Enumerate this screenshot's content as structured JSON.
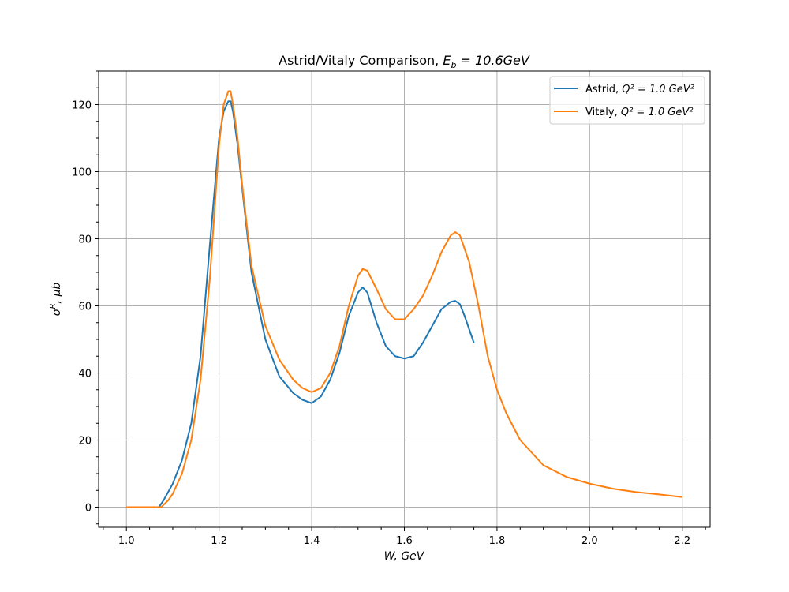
{
  "chart_data": {
    "type": "line",
    "title": {
      "text": "Astrid/Vitaly Comparison, ",
      "math_base": "E",
      "math_sub": "b",
      "math_rest": " = 10.6GeV"
    },
    "xlabel": "W, GeV",
    "ylabel": {
      "base": "σ",
      "sup": "R",
      "rest": ", μb"
    },
    "xlim": [
      0.94,
      2.26
    ],
    "ylim": [
      -6,
      130
    ],
    "xticks": [
      1.0,
      1.2,
      1.4,
      1.6,
      1.8,
      2.0,
      2.2
    ],
    "xtick_labels": [
      "1.0",
      "1.2",
      "1.4",
      "1.6",
      "1.8",
      "2.0",
      "2.2"
    ],
    "yticks": [
      0,
      20,
      40,
      60,
      80,
      100,
      120
    ],
    "ytick_labels": [
      "0",
      "20",
      "40",
      "60",
      "80",
      "100",
      "120"
    ],
    "grid": true,
    "legend_position": "top-right",
    "series": [
      {
        "name": "Astrid, ",
        "legend_math": "Q² = 1.0 GeV²",
        "color": "#1f77b4",
        "x": [
          1.07,
          1.08,
          1.1,
          1.12,
          1.14,
          1.16,
          1.18,
          1.2,
          1.21,
          1.22,
          1.225,
          1.23,
          1.24,
          1.25,
          1.27,
          1.3,
          1.33,
          1.36,
          1.38,
          1.4,
          1.42,
          1.44,
          1.46,
          1.48,
          1.5,
          1.51,
          1.52,
          1.54,
          1.56,
          1.58,
          1.6,
          1.62,
          1.64,
          1.66,
          1.68,
          1.7,
          1.71,
          1.72,
          1.73,
          1.75
        ],
        "y": [
          0,
          2,
          7,
          14,
          25,
          45,
          78,
          110,
          118,
          121,
          121,
          118,
          108,
          95,
          70,
          50,
          39,
          34,
          32,
          31,
          33,
          38,
          46,
          57,
          64,
          65.5,
          64,
          55,
          48,
          45,
          44.3,
          45,
          49,
          54,
          59,
          61.2,
          61.5,
          60.5,
          57,
          49
        ]
      },
      {
        "name": "Vitaly, ",
        "legend_math": "Q² = 1.0 GeV²",
        "color": "#ff7f0e",
        "x": [
          1.0,
          1.075,
          1.09,
          1.1,
          1.12,
          1.14,
          1.16,
          1.18,
          1.2,
          1.21,
          1.22,
          1.225,
          1.23,
          1.24,
          1.25,
          1.27,
          1.3,
          1.33,
          1.36,
          1.38,
          1.4,
          1.42,
          1.44,
          1.46,
          1.48,
          1.5,
          1.51,
          1.52,
          1.54,
          1.56,
          1.58,
          1.6,
          1.62,
          1.64,
          1.66,
          1.68,
          1.7,
          1.71,
          1.72,
          1.74,
          1.76,
          1.78,
          1.8,
          1.82,
          1.85,
          1.9,
          1.95,
          2.0,
          2.05,
          2.1,
          2.15,
          2.2
        ],
        "y": [
          0,
          0,
          2,
          4,
          10,
          20,
          38,
          68,
          108,
          120,
          124,
          124,
          120,
          110,
          96,
          72,
          54,
          44,
          38,
          35.5,
          34.3,
          35.5,
          40,
          48,
          60,
          69,
          71,
          70.5,
          65,
          59,
          56,
          56,
          59,
          63,
          69,
          76,
          81,
          82,
          81,
          73,
          60,
          45,
          35,
          28,
          20,
          12.5,
          9,
          7,
          5.5,
          4.5,
          3.8,
          3
        ]
      }
    ]
  }
}
